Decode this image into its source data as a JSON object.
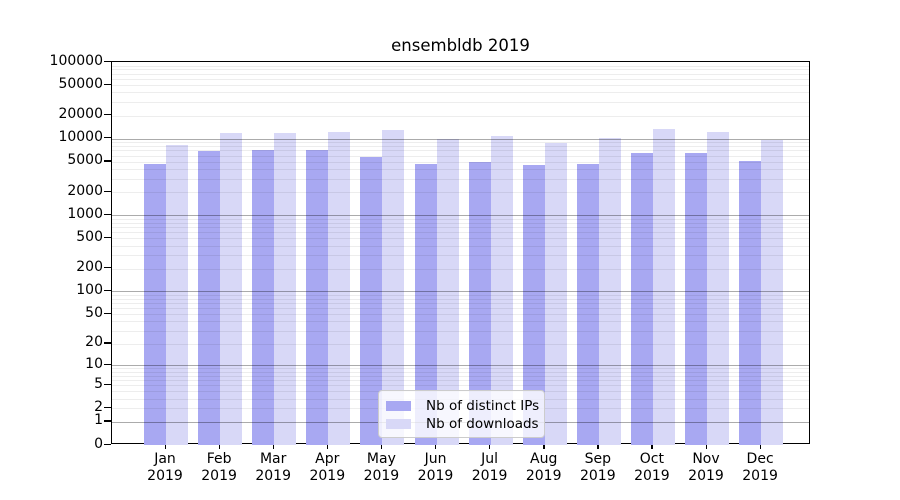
{
  "chart_data": {
    "type": "bar",
    "title": "ensembldb 2019",
    "year": "2019",
    "months": [
      "Jan",
      "Feb",
      "Mar",
      "Apr",
      "May",
      "Jun",
      "Jul",
      "Aug",
      "Sep",
      "Oct",
      "Nov",
      "Dec"
    ],
    "series": [
      {
        "name": "Nb of distinct IPs",
        "color": "#a8a8f2",
        "values": [
          4600,
          6800,
          7100,
          7100,
          5800,
          4600,
          5000,
          4550,
          4600,
          6500,
          6400,
          5100
        ]
      },
      {
        "name": "Nb of downloads",
        "color": "#d8d8f7",
        "values": [
          8300,
          11700,
          12000,
          12100,
          13100,
          9800,
          10800,
          8800,
          10300,
          13500,
          12300,
          9500
        ]
      }
    ],
    "y_ticks": [
      0,
      1,
      2,
      5,
      10,
      20,
      50,
      100,
      200,
      500,
      1000,
      2000,
      5000,
      10000,
      20000,
      50000,
      100000
    ],
    "ylim": [
      0,
      100000
    ],
    "y_scale": "log1p",
    "grid": {
      "major_at": [
        1,
        10,
        100,
        1000,
        10000
      ],
      "major_color": "rgba(0,0,0,0.33)",
      "minor_color": "rgba(0,0,0,0.07)"
    },
    "legend": {
      "position": "bottom-center"
    },
    "axis_color": "#000000",
    "background": "#ffffff"
  }
}
